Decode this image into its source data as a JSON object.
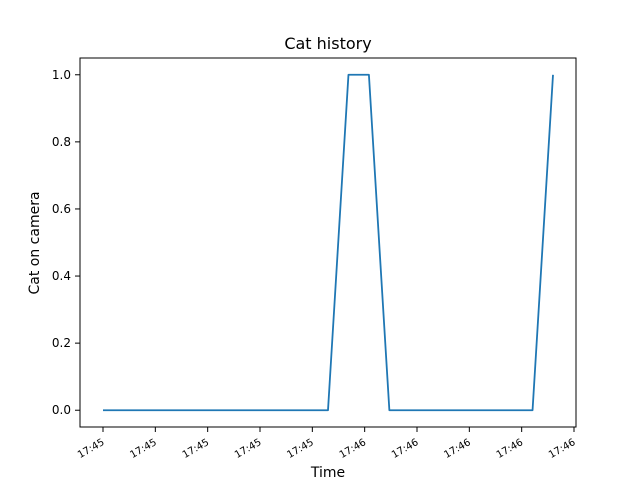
{
  "chart_data": {
    "type": "line",
    "title": "Cat history",
    "xlabel": "Time",
    "ylabel": "Cat on camera",
    "ylim": [
      -0.05,
      1.05
    ],
    "y_ticks": [
      0.0,
      0.2,
      0.4,
      0.6,
      0.8,
      1.0
    ],
    "y_tick_labels": [
      "0.0",
      "0.2",
      "0.4",
      "0.6",
      "0.8",
      "1.0"
    ],
    "x_tick_labels": [
      "17:45",
      "17:45",
      "17:45",
      "17:45",
      "17:45",
      "17:46",
      "17:46",
      "17:46",
      "17:46",
      "17:46"
    ],
    "grid": false,
    "line_color": "#1f77b4",
    "series": [
      {
        "values": [
          0,
          0,
          0,
          0,
          0,
          0,
          0,
          0,
          0,
          0,
          0,
          0,
          1,
          1,
          0,
          0,
          0,
          0,
          0,
          0,
          0,
          0,
          1
        ]
      }
    ]
  }
}
